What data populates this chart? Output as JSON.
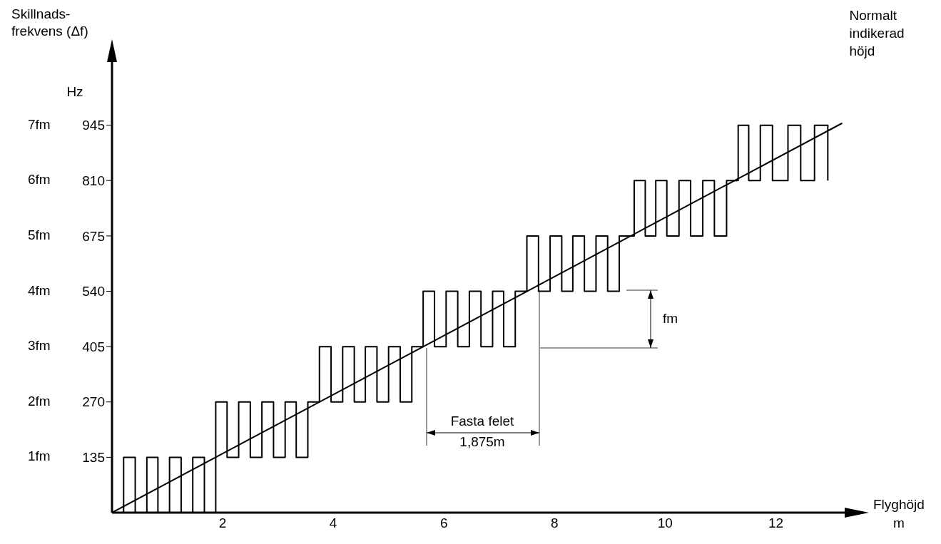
{
  "chart_data": {
    "type": "step",
    "ylabel": "Skillnads-\nfrekvens (Δf)",
    "xlabel": "Flyghöjd\nm",
    "xlim": [
      0,
      13.4
    ],
    "xticks": [
      2,
      4,
      6,
      8,
      10,
      12
    ],
    "ylim": [
      0,
      1120
    ],
    "yticks": [
      135,
      270,
      405,
      540,
      675,
      810,
      945
    ],
    "grid": false,
    "marker": "none",
    "line_style": "solid",
    "annotations": [
      "Hz",
      "1fm",
      "2fm",
      "3fm",
      "4fm",
      "5fm",
      "6fm",
      "7fm",
      "fm",
      "Fasta felet",
      "1,875m"
    ],
    "series": [
      {
        "color": "#000000",
        "x": [
          0,
          0.21,
          0.42,
          0.63,
          0.83,
          1.04,
          1.25,
          1.46,
          1.67,
          1.875,
          2.08,
          2.29,
          2.5,
          2.71,
          2.92,
          3.13,
          3.33,
          3.54,
          3.75,
          3.96,
          4.17,
          4.38,
          4.58,
          4.79,
          5.0,
          5.21,
          5.42,
          5.625,
          5.83,
          6.04,
          6.25,
          6.46,
          6.67,
          6.88,
          7.08,
          7.29,
          7.5,
          7.71,
          7.92,
          8.13,
          8.33,
          8.54,
          8.75,
          8.96,
          9.17,
          9.44,
          9.64,
          9.83,
          10.03,
          10.25,
          10.46,
          10.68,
          10.89,
          11.11,
          11.32,
          11.51,
          11.72,
          11.94,
          12.22,
          12.45,
          12.7,
          12.94
        ],
        "values": [
          0,
          135,
          0,
          135,
          0,
          135,
          0,
          135,
          0,
          270,
          135,
          270,
          135,
          270,
          135,
          270,
          135,
          270,
          405,
          270,
          405,
          270,
          405,
          270,
          405,
          270,
          405,
          540,
          405,
          540,
          405,
          540,
          405,
          540,
          405,
          540,
          675,
          540,
          675,
          540,
          675,
          540,
          675,
          540,
          675,
          810,
          675,
          810,
          675,
          810,
          675,
          810,
          675,
          810,
          945,
          810,
          945,
          810,
          945,
          810,
          945,
          810
        ]
      },
      {
        "type": "line",
        "name": "Normalt indikerad höjd",
        "color": "#000000",
        "x": [
          0,
          13.2
        ],
        "values": [
          0,
          950
        ]
      }
    ]
  }
}
